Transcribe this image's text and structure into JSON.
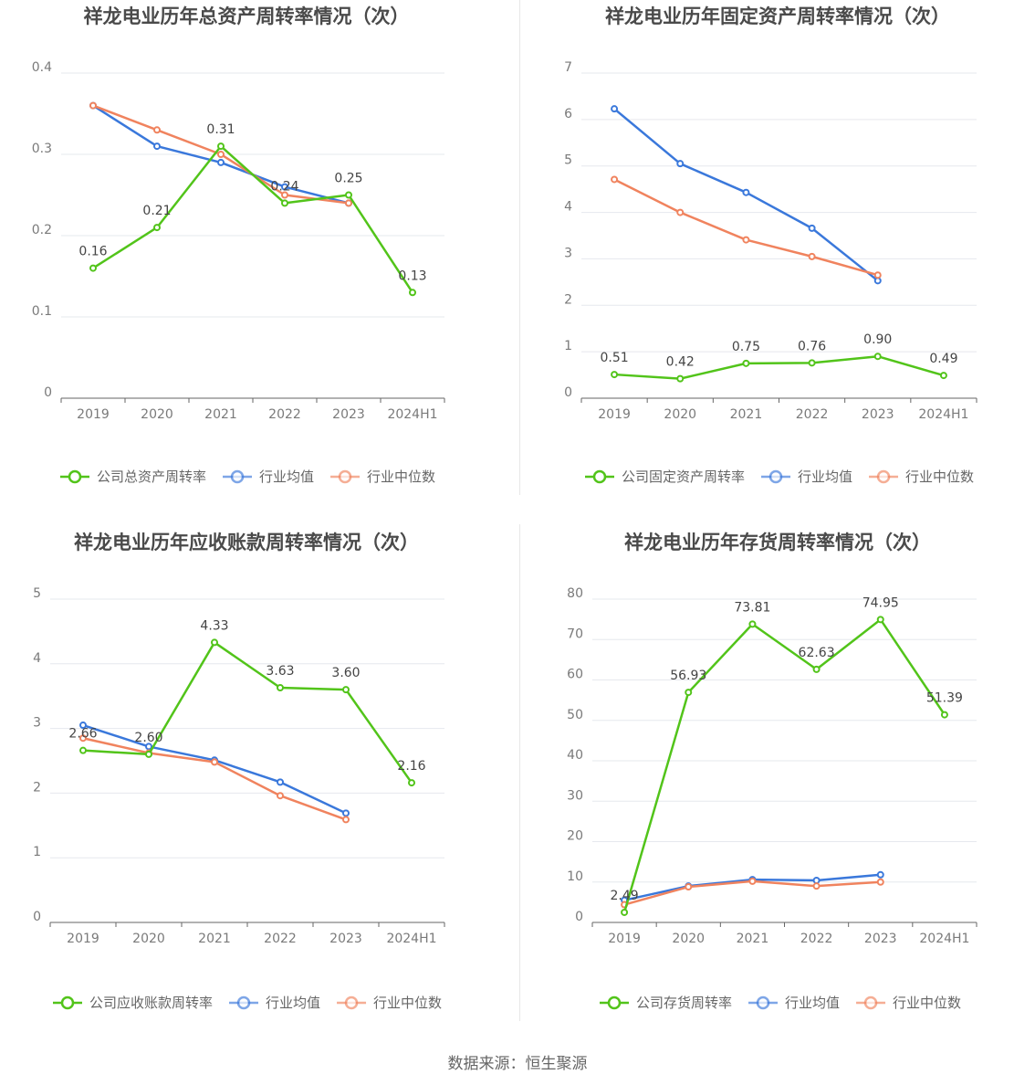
{
  "colors": {
    "company": "#52c41a",
    "industry_avg": "#3a78db",
    "industry_median": "#f0835e"
  },
  "source": "数据来源：恒生聚源",
  "chart_data": [
    {
      "type": "line",
      "title": "祥龙电业历年总资产周转率情况（次）",
      "categories": [
        "2019",
        "2020",
        "2021",
        "2022",
        "2023",
        "2024H1"
      ],
      "yticks": [
        "0",
        "0.1",
        "0.2",
        "0.3",
        "0.4"
      ],
      "ylim": [
        0,
        0.4
      ],
      "grid": true,
      "legend_position": "bottom",
      "series": [
        {
          "name": "公司总资产周转率",
          "key": "company",
          "values": [
            0.16,
            0.21,
            0.31,
            0.24,
            0.25,
            0.13
          ],
          "labels": [
            "0.16",
            "0.21",
            "0.31",
            "0.24",
            "0.25",
            "0.13"
          ]
        },
        {
          "name": "行业均值",
          "key": "industry_avg",
          "values": [
            0.36,
            0.31,
            0.29,
            0.26,
            0.24,
            null
          ]
        },
        {
          "name": "行业中位数",
          "key": "industry_median",
          "values": [
            0.36,
            0.33,
            0.3,
            0.25,
            0.24,
            null
          ]
        }
      ]
    },
    {
      "type": "line",
      "title": "祥龙电业历年固定资产周转率情况（次）",
      "categories": [
        "2019",
        "2020",
        "2021",
        "2022",
        "2023",
        "2024H1"
      ],
      "yticks": [
        "0",
        "1",
        "2",
        "3",
        "4",
        "5",
        "6",
        "7"
      ],
      "ylim": [
        0,
        7
      ],
      "grid": true,
      "legend_position": "bottom",
      "series": [
        {
          "name": "公司固定资产周转率",
          "key": "company",
          "values": [
            0.51,
            0.42,
            0.75,
            0.76,
            0.9,
            0.49
          ],
          "labels": [
            "0.51",
            "0.42",
            "0.75",
            "0.76",
            "0.90",
            "0.49"
          ]
        },
        {
          "name": "行业均值",
          "key": "industry_avg",
          "values": [
            6.23,
            5.05,
            4.43,
            3.66,
            2.53,
            null
          ]
        },
        {
          "name": "行业中位数",
          "key": "industry_median",
          "values": [
            4.71,
            4.0,
            3.41,
            3.05,
            2.65,
            null
          ]
        }
      ]
    },
    {
      "type": "line",
      "title": "祥龙电业历年应收账款周转率情况（次）",
      "categories": [
        "2019",
        "2020",
        "2021",
        "2022",
        "2023",
        "2024H1"
      ],
      "yticks": [
        "0",
        "1",
        "2",
        "3",
        "4",
        "5"
      ],
      "ylim": [
        0,
        5
      ],
      "grid": true,
      "legend_position": "bottom",
      "series": [
        {
          "name": "公司应收账款周转率",
          "key": "company",
          "values": [
            2.66,
            2.6,
            4.33,
            3.63,
            3.6,
            2.16
          ],
          "labels": [
            "2.66",
            "2.60",
            "4.33",
            "3.63",
            "3.60",
            "2.16"
          ]
        },
        {
          "name": "行业均值",
          "key": "industry_avg",
          "values": [
            3.05,
            2.72,
            2.51,
            2.17,
            1.69,
            null
          ]
        },
        {
          "name": "行业中位数",
          "key": "industry_median",
          "values": [
            2.85,
            2.62,
            2.48,
            1.96,
            1.59,
            null
          ]
        }
      ]
    },
    {
      "type": "line",
      "title": "祥龙电业历年存货周转率情况（次）",
      "categories": [
        "2019",
        "2020",
        "2021",
        "2022",
        "2023",
        "2024H1"
      ],
      "yticks": [
        "0",
        "10",
        "20",
        "30",
        "40",
        "50",
        "60",
        "70",
        "80"
      ],
      "ylim": [
        0,
        80
      ],
      "grid": true,
      "legend_position": "bottom",
      "series": [
        {
          "name": "公司存货周转率",
          "key": "company",
          "values": [
            2.49,
            56.93,
            73.81,
            62.63,
            74.95,
            51.39
          ],
          "labels": [
            "2.49",
            "56.93",
            "73.81",
            "62.63",
            "74.95",
            "51.39"
          ]
        },
        {
          "name": "行业均值",
          "key": "industry_avg",
          "values": [
            5.5,
            9.0,
            10.6,
            10.4,
            11.8,
            null
          ]
        },
        {
          "name": "行业中位数",
          "key": "industry_median",
          "values": [
            4.4,
            8.8,
            10.2,
            9.0,
            10.0,
            null
          ]
        }
      ]
    }
  ]
}
